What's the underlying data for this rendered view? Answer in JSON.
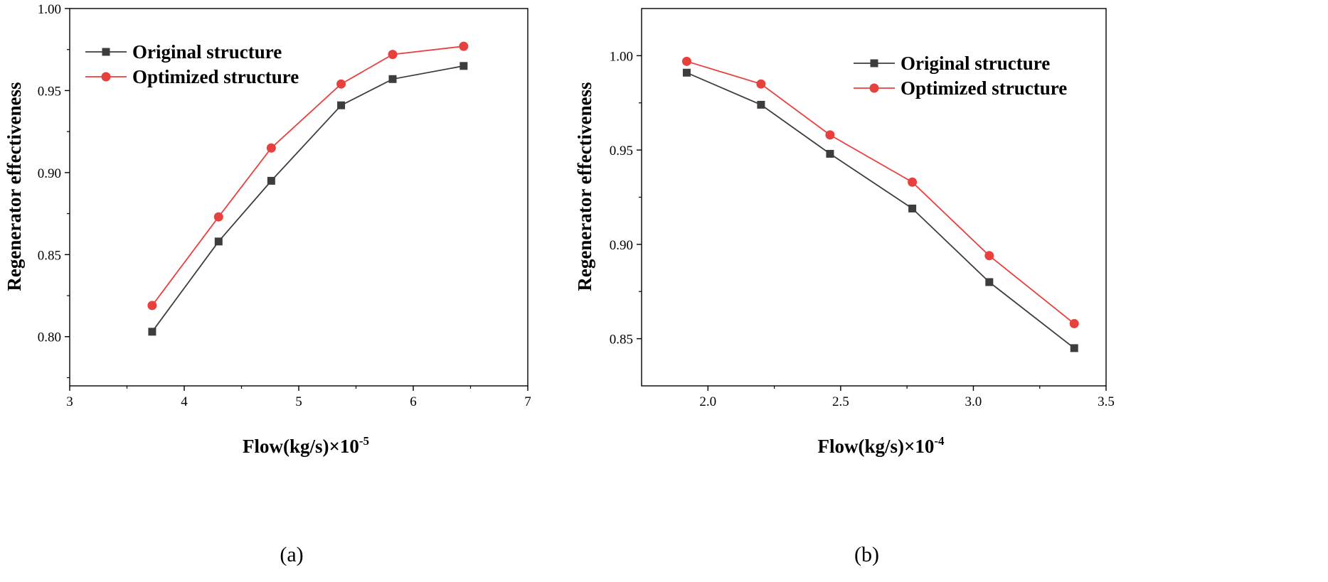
{
  "chart_data": [
    {
      "type": "line",
      "panel_label": "(a)",
      "xlabel": "Flow(kg/s)×10",
      "xlabel_exp": "-5",
      "ylabel": "Regenerator effectiveness",
      "xlim": [
        3,
        7
      ],
      "ylim": [
        0.77,
        1.0
      ],
      "xticks": [
        3,
        4,
        5,
        6,
        7
      ],
      "xtick_labels": [
        "3",
        "4",
        "5",
        "6",
        "7"
      ],
      "yticks": [
        0.8,
        0.85,
        0.9,
        0.95,
        1.0
      ],
      "ytick_labels": [
        "0.80",
        "0.85",
        "0.90",
        "0.95",
        "1.00"
      ],
      "legend_position": "top-left",
      "grid": false,
      "series": [
        {
          "name": "Original structure",
          "color": "#3d3d3d",
          "marker": "square",
          "x": [
            3.72,
            4.3,
            4.76,
            5.37,
            5.82,
            6.44
          ],
          "y": [
            0.803,
            0.858,
            0.895,
            0.941,
            0.957,
            0.965
          ]
        },
        {
          "name": "Optimized structure",
          "color": "#e8403c",
          "marker": "circle",
          "x": [
            3.72,
            4.3,
            4.76,
            5.37,
            5.82,
            6.44
          ],
          "y": [
            0.819,
            0.873,
            0.915,
            0.954,
            0.972,
            0.977
          ]
        }
      ]
    },
    {
      "type": "line",
      "panel_label": "(b)",
      "xlabel": "Flow(kg/s)×10",
      "xlabel_exp": "-4",
      "ylabel": "Regenerator effectiveness",
      "xlim": [
        1.75,
        3.5
      ],
      "ylim": [
        0.825,
        1.025
      ],
      "xticks": [
        2.0,
        2.5,
        3.0,
        3.5
      ],
      "xtick_labels": [
        "2.0",
        "2.5",
        "3.0",
        "3.5"
      ],
      "yticks": [
        0.85,
        0.9,
        0.95,
        1.0
      ],
      "ytick_labels": [
        "0.85",
        "0.90",
        "0.95",
        "1.00"
      ],
      "legend_position": "top-right",
      "grid": false,
      "series": [
        {
          "name": "Original structure",
          "color": "#3d3d3d",
          "marker": "square",
          "x": [
            1.92,
            2.2,
            2.46,
            2.77,
            3.06,
            3.38
          ],
          "y": [
            0.991,
            0.974,
            0.948,
            0.919,
            0.88,
            0.845
          ]
        },
        {
          "name": "Optimized structure",
          "color": "#e8403c",
          "marker": "circle",
          "x": [
            1.92,
            2.2,
            2.46,
            2.77,
            3.06,
            3.38
          ],
          "y": [
            0.997,
            0.985,
            0.958,
            0.933,
            0.894,
            0.858
          ]
        }
      ]
    }
  ]
}
